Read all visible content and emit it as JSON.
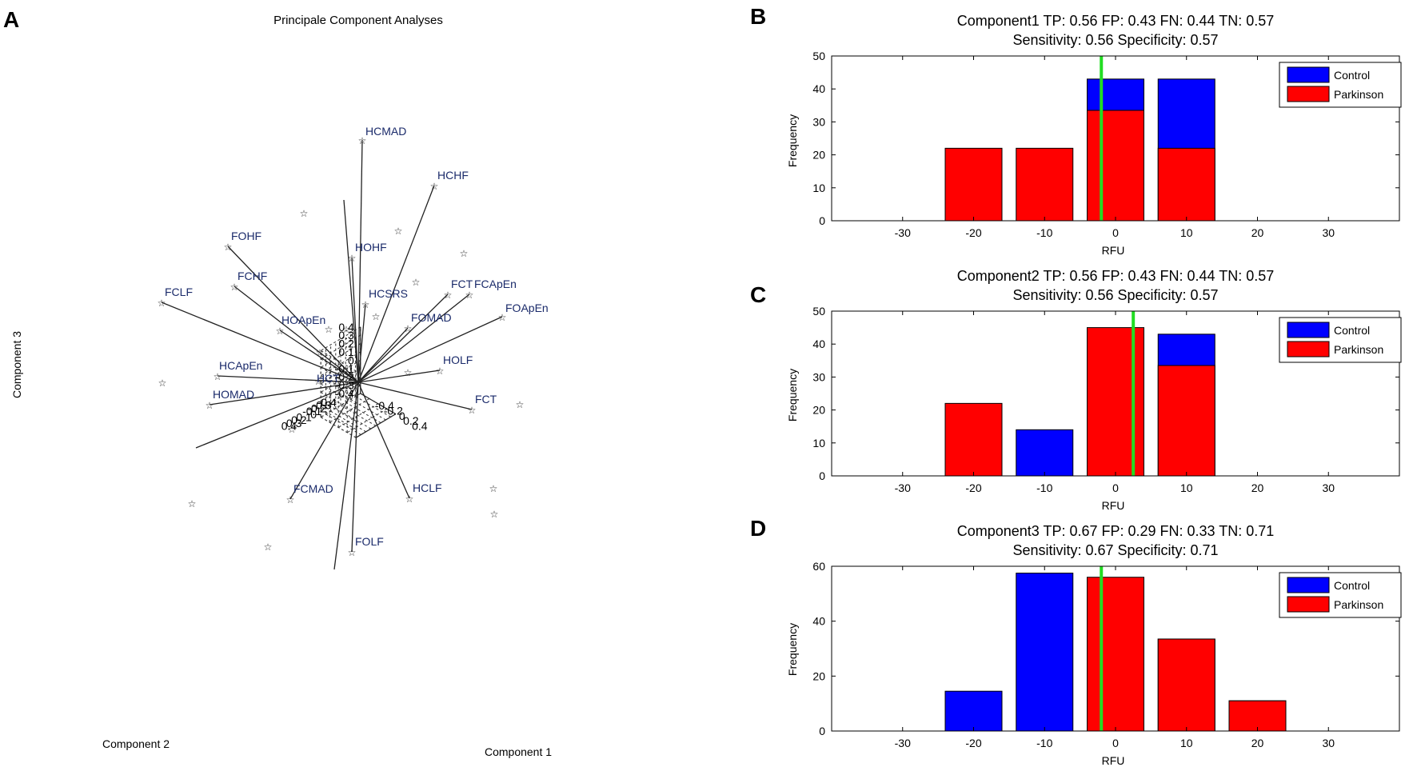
{
  "panel_letters": [
    "A",
    "B",
    "C",
    "D"
  ],
  "colors": {
    "control": "#0000ff",
    "parkinson": "#ff0000",
    "threshold": "#22dd22",
    "vector_label": "#1a2a6a"
  },
  "chart_data": [
    {
      "type": "scatter3d-biplot",
      "panel": "A",
      "title": "Principale Component Analyses",
      "xlabel": "Component 1",
      "ylabel": "Component 2",
      "zlabel": "Component 3",
      "x_ticks": [
        "-0.4",
        "-0.2",
        "0",
        "0.2",
        "0.4"
      ],
      "y_ticks": [
        "0.4",
        "0.3",
        "0.2",
        "0.1",
        "0",
        "-0.1",
        "-0.2",
        "-0.3",
        "-0.4"
      ],
      "z_ticks": [
        "0.4",
        "0.3",
        "0.2",
        "0.1",
        "0",
        "-0.1",
        "-0.2",
        "-0.3",
        "-0.4"
      ],
      "vectors": [
        {
          "label": "HCMAD"
        },
        {
          "label": "HCHF"
        },
        {
          "label": "FOHF"
        },
        {
          "label": "FCHF"
        },
        {
          "label": "FCLF"
        },
        {
          "label": "HOHF"
        },
        {
          "label": "HCSRS"
        },
        {
          "label": "FCT"
        },
        {
          "label": "FCApEn"
        },
        {
          "label": "FOApEn"
        },
        {
          "label": "HOApEn"
        },
        {
          "label": "FOMAD"
        },
        {
          "label": "HCApEn"
        },
        {
          "label": "HOMAD"
        },
        {
          "label": "HCT"
        },
        {
          "label": "HOLF"
        },
        {
          "label": "FCT"
        },
        {
          "label": "FCMAD"
        },
        {
          "label": "HCLF"
        },
        {
          "label": "FOLF"
        }
      ],
      "scores_count": 16
    },
    {
      "type": "bar",
      "panel": "B",
      "title_line1": "Component1 TP: 0.56 FP: 0.43 FN: 0.44 TN: 0.57",
      "title_line2": "Sensitivity: 0.56  Specificity: 0.57",
      "xlabel": "RFU",
      "ylabel": "Frequency",
      "xlim": [
        -40,
        40
      ],
      "ylim": [
        0,
        50
      ],
      "x_ticks": [
        -30,
        -20,
        -10,
        0,
        10,
        20,
        30
      ],
      "y_ticks": [
        0,
        10,
        20,
        30,
        40,
        50
      ],
      "threshold": -2,
      "legend": [
        "Control",
        "Parkinson"
      ],
      "bars": [
        {
          "center": -20,
          "control": 0,
          "parkinson": 22
        },
        {
          "center": -10,
          "control": 0,
          "parkinson": 22
        },
        {
          "center": 0,
          "control": 43,
          "parkinson": 33.5
        },
        {
          "center": 10,
          "control": 43,
          "parkinson": 22
        }
      ]
    },
    {
      "type": "bar",
      "panel": "C",
      "title_line1": "Component2 TP: 0.56 FP: 0.43 FN: 0.44 TN: 0.57",
      "title_line2": "Sensitivity: 0.56  Specificity: 0.57",
      "xlabel": "RFU",
      "ylabel": "Frequency",
      "xlim": [
        -40,
        40
      ],
      "ylim": [
        0,
        50
      ],
      "x_ticks": [
        -30,
        -20,
        -10,
        0,
        10,
        20,
        30
      ],
      "y_ticks": [
        0,
        10,
        20,
        30,
        40,
        50
      ],
      "threshold": 2.5,
      "legend": [
        "Control",
        "Parkinson"
      ],
      "bars": [
        {
          "center": -20,
          "control": 0,
          "parkinson": 22
        },
        {
          "center": -10,
          "control": 14,
          "parkinson": 0
        },
        {
          "center": 0,
          "control": 0,
          "parkinson": 45
        },
        {
          "center": 10,
          "control": 43,
          "parkinson": 33.5
        }
      ]
    },
    {
      "type": "bar",
      "panel": "D",
      "title_line1": "Component3 TP: 0.67 FP: 0.29 FN: 0.33 TN: 0.71",
      "title_line2": "Sensitivity: 0.67  Specificity: 0.71",
      "xlabel": "RFU",
      "ylabel": "Frequency",
      "xlim": [
        -40,
        40
      ],
      "ylim": [
        0,
        60
      ],
      "x_ticks": [
        -30,
        -20,
        -10,
        0,
        10,
        20,
        30
      ],
      "y_ticks": [
        0,
        20,
        40,
        60
      ],
      "threshold": -2,
      "legend": [
        "Control",
        "Parkinson"
      ],
      "bars": [
        {
          "center": -20,
          "control": 14.5,
          "parkinson": 0
        },
        {
          "center": -10,
          "control": 57.5,
          "parkinson": 0
        },
        {
          "center": 0,
          "control": 0,
          "parkinson": 56
        },
        {
          "center": 10,
          "control": 33.5,
          "parkinson": 33.5
        },
        {
          "center": 20,
          "control": 11,
          "parkinson": 11
        }
      ]
    }
  ]
}
